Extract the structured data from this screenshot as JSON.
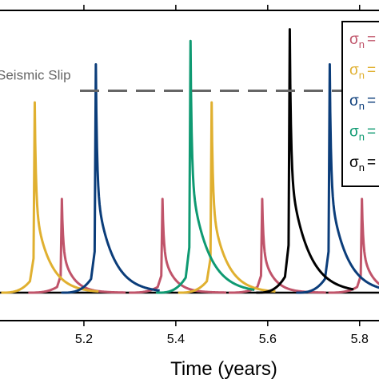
{
  "chart_data": {
    "type": "line",
    "xlabel": "Time (years)",
    "ylabel": "",
    "xlim": [
      5.0,
      5.85
    ],
    "x_ticks": [
      5.2,
      5.4,
      5.6,
      5.8
    ],
    "x_tick_labels": [
      "5.2",
      "5.4",
      "5.6",
      "5.8"
    ],
    "ylim": [
      0,
      1
    ],
    "grid": false,
    "legend_position": "top-right",
    "reference_line": {
      "label": "Seismic Slip",
      "y": 0.69,
      "style": "dashed",
      "color": "#666666"
    },
    "series": [
      {
        "legend_label": "σn =",
        "color": "#c0546a",
        "peaks": [
          {
            "x": 5.152,
            "y": 0.32
          },
          {
            "x": 5.371,
            "y": 0.32
          },
          {
            "x": 5.588,
            "y": 0.32
          },
          {
            "x": 5.805,
            "y": 0.32
          }
        ]
      },
      {
        "legend_label": "σn =",
        "color": "#e0b030",
        "peaks": [
          {
            "x": 5.093,
            "y": 0.65
          },
          {
            "x": 5.478,
            "y": 0.65
          }
        ]
      },
      {
        "legend_label": "σn =",
        "color": "#0b3d7a",
        "peaks": [
          {
            "x": 5.226,
            "y": 0.78
          },
          {
            "x": 5.735,
            "y": 0.78
          }
        ]
      },
      {
        "legend_label": "σn =",
        "color": "#0f9a72",
        "peaks": [
          {
            "x": 5.432,
            "y": 0.86
          }
        ]
      },
      {
        "legend_label": "σn =",
        "color": "#000000",
        "peaks": [
          {
            "x": 5.648,
            "y": 0.9
          }
        ]
      }
    ]
  }
}
